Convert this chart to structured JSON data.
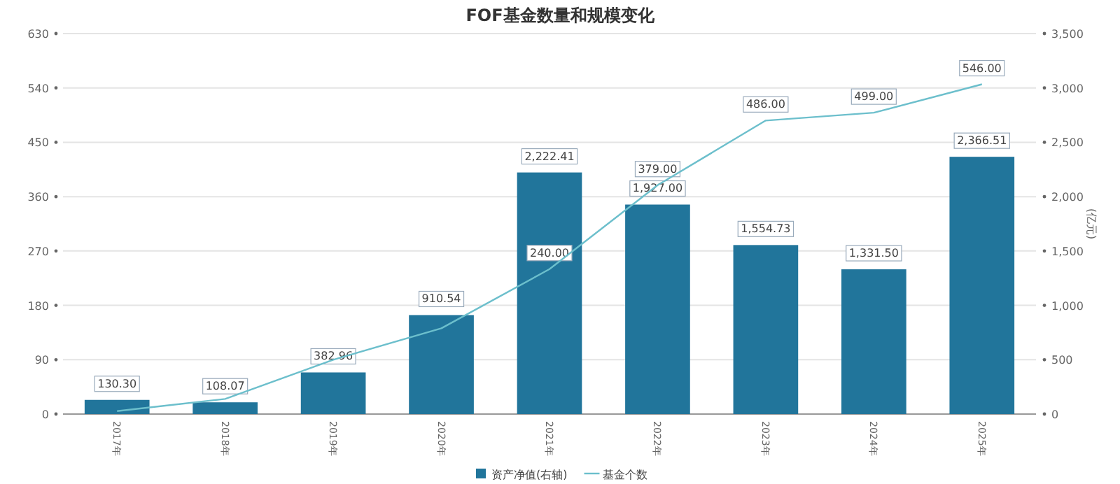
{
  "chart_data": {
    "type": "bar",
    "title": "FOF基金数量和规模变化",
    "categories": [
      "2017年",
      "2018年",
      "2019年",
      "2020年",
      "2021年",
      "2022年",
      "2023年",
      "2024年",
      "2025年"
    ],
    "series": [
      {
        "name": "资产净值(右轴)",
        "axis": "y2",
        "color": "#21759b",
        "values": [
          130.3,
          108.07,
          382.96,
          910.54,
          2222.41,
          1927.0,
          1554.73,
          1331.5,
          2366.51
        ],
        "value_labels": [
          "130.30",
          "108.07",
          "382.96",
          "910.54",
          "2,222.41",
          "1,927.00",
          "1,554.73",
          "1,331.50",
          "2,366.51"
        ]
      },
      {
        "name": "基金个数",
        "type": "line",
        "color": "#6cbfcc",
        "values": [
          5,
          25,
          90,
          142,
          240,
          379,
          486,
          499,
          546
        ],
        "value_labels": [
          null,
          null,
          null,
          null,
          "240.00",
          "379.00",
          "486.00",
          "499.00",
          "546.00"
        ]
      }
    ],
    "ylim": [
      0,
      630
    ],
    "yticks": [
      0,
      90,
      180,
      270,
      360,
      450,
      540,
      630
    ],
    "y2lim": [
      0,
      3500
    ],
    "y2ticks": [
      {
        "value": 0,
        "label": "0"
      },
      {
        "value": 500,
        "label": "500"
      },
      {
        "value": 1000,
        "label": "1,000"
      },
      {
        "value": 1500,
        "label": "1,500"
      },
      {
        "value": 2000,
        "label": "2,000"
      },
      {
        "value": 2500,
        "label": "2,500"
      },
      {
        "value": 3000,
        "label": "3,000"
      },
      {
        "value": 3500,
        "label": "3,500"
      }
    ],
    "y2label": "(亿元)",
    "grid": "y",
    "legend": "bottom"
  }
}
